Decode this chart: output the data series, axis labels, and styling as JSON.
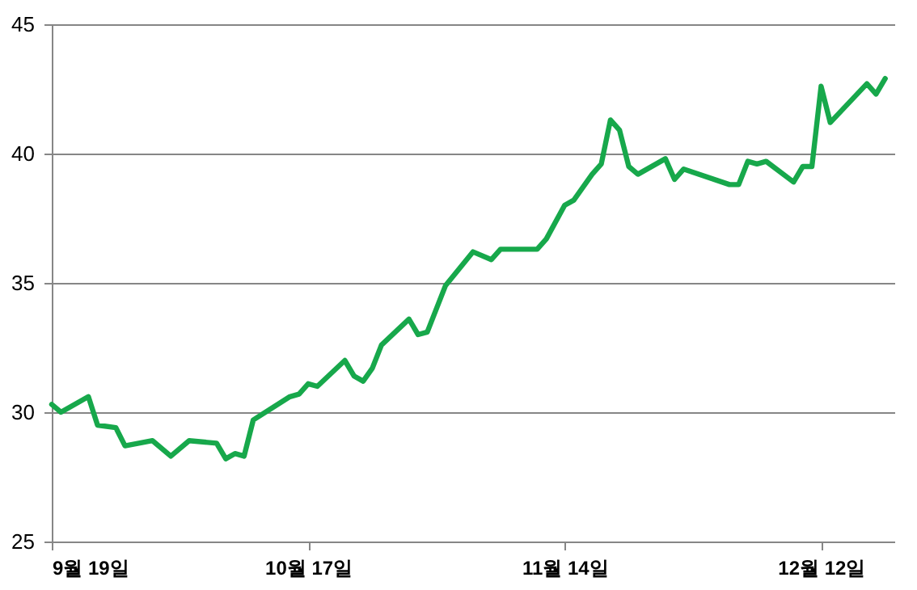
{
  "chart_data": {
    "type": "line",
    "x": [
      "--09-19",
      "--09-20",
      "--09-23",
      "--09-24",
      "--09-26",
      "--09-27",
      "--09-30",
      "--10-02",
      "--10-04",
      "--10-07",
      "--10-08",
      "--10-09",
      "--10-10",
      "--10-11",
      "--10-15",
      "--10-16",
      "--10-17",
      "--10-18",
      "--10-21",
      "--10-22",
      "--10-23",
      "--10-24",
      "--10-25",
      "--10-28",
      "--10-29",
      "--10-30",
      "--11-01",
      "--11-04",
      "--11-06",
      "--11-07",
      "--11-11",
      "--11-12",
      "--11-14",
      "--11-15",
      "--11-17",
      "--11-18",
      "--11-19",
      "--11-20",
      "--11-21",
      "--11-22",
      "--11-25",
      "--11-26",
      "--11-27",
      "--12-02",
      "--12-03",
      "--12-04",
      "--12-05",
      "--12-06",
      "--12-09",
      "--12-10",
      "--12-11",
      "--12-12",
      "--12-13",
      "--12-17",
      "--12-18",
      "--12-19"
    ],
    "series": [
      {
        "color": "#17a84b",
        "values": [
          30.3,
          30.0,
          30.6,
          29.5,
          29.4,
          28.7,
          28.9,
          28.3,
          28.9,
          28.8,
          28.2,
          28.4,
          28.3,
          29.7,
          30.6,
          30.7,
          31.1,
          31.0,
          32.0,
          31.4,
          31.2,
          31.7,
          32.6,
          33.6,
          33.0,
          33.1,
          34.9,
          36.2,
          35.9,
          36.3,
          36.3,
          36.7,
          38.0,
          38.2,
          39.2,
          39.6,
          41.3,
          40.9,
          39.5,
          39.2,
          39.8,
          39.0,
          39.4,
          38.8,
          38.8,
          39.7,
          39.6,
          39.7,
          38.9,
          39.5,
          39.5,
          42.6,
          41.2,
          42.7,
          42.3,
          42.9
        ]
      }
    ],
    "xlim": [
      "--09-19",
      "--12-20"
    ],
    "xticks": [
      {
        "value": "--09-19",
        "label": "9월 19일"
      },
      {
        "value": "--10-17",
        "label": "10월 17일"
      },
      {
        "value": "--11-14",
        "label": "11월 14일"
      },
      {
        "value": "--12-12",
        "label": "12월 12일"
      }
    ],
    "ylim": [
      25,
      45
    ],
    "yticks": [
      25,
      30,
      35,
      40,
      45
    ],
    "grid": "y",
    "marker": "none",
    "line_style": "solid"
  }
}
